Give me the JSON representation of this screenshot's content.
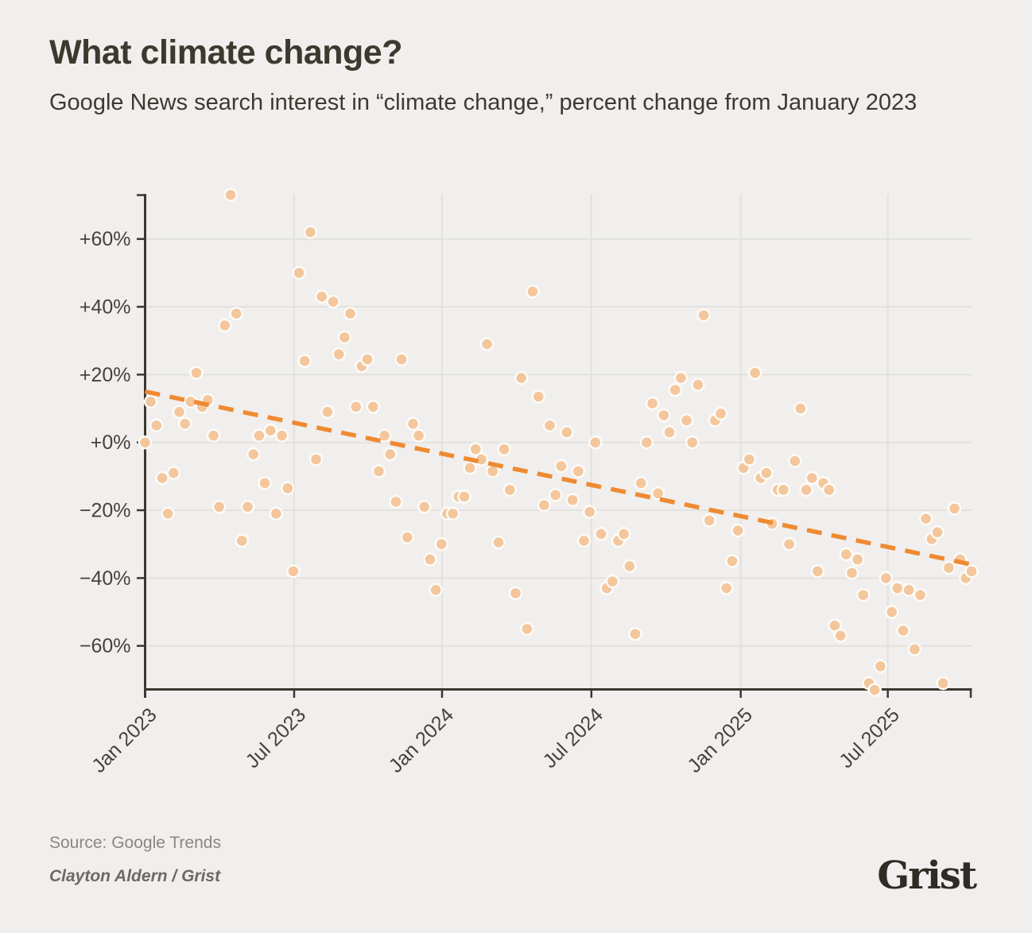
{
  "header": {
    "title": "What climate change?",
    "subtitle": "Google News search interest in “climate change,” percent change from January 2023"
  },
  "footer": {
    "source": "Source: Google Trends",
    "credit": "Clayton Aldern / Grist",
    "logo": "Grist"
  },
  "colors": {
    "background": "#f0efed",
    "point_fill": "#f4c69c",
    "point_halo": "#fcfbf8",
    "trend_orange": "#ef8a32",
    "axis_dark": "#3b382f",
    "gridline": "#e3e1dd",
    "tick_text": "#46423a"
  },
  "chart_data": {
    "type": "scatter",
    "title": "What climate change?",
    "subtitle": "Google News search interest in “climate change,” percent change from January 2023",
    "x_unit": "weeks since January 2023",
    "grid": true,
    "x_axis": {
      "ticks": [
        {
          "label": "Jan 2023",
          "week": 0
        },
        {
          "label": "Jul 2023",
          "week": 26.15
        },
        {
          "label": "Jan 2024",
          "week": 52.1
        },
        {
          "label": "Jul 2024",
          "week": 78.3
        },
        {
          "label": "Jan 2025",
          "week": 104.5
        },
        {
          "label": "Jul 2025",
          "week": 130.3
        }
      ]
    },
    "y_axis": {
      "ticks": [
        {
          "label": "+60%",
          "value": 60
        },
        {
          "label": "+40%",
          "value": 40
        },
        {
          "label": "+20%",
          "value": 20
        },
        {
          "label": "+0%",
          "value": 0
        },
        {
          "label": "−20%",
          "value": -20
        },
        {
          "label": "−40%",
          "value": -40
        },
        {
          "label": "−60%",
          "value": -60
        }
      ],
      "range": [
        -73,
        73.5
      ]
    },
    "points": [
      [
        0,
        0
      ],
      [
        1,
        12
      ],
      [
        2,
        5
      ],
      [
        3,
        -10.5
      ],
      [
        4,
        -21
      ],
      [
        5,
        -9
      ],
      [
        6,
        9
      ],
      [
        7,
        5.5
      ],
      [
        8,
        12
      ],
      [
        9,
        20.5
      ],
      [
        10,
        10.5
      ],
      [
        11,
        12.5
      ],
      [
        12,
        2
      ],
      [
        13,
        -19
      ],
      [
        14,
        34.5
      ],
      [
        15,
        73
      ],
      [
        16,
        38
      ],
      [
        17,
        -29
      ],
      [
        18,
        -19
      ],
      [
        19,
        -3.5
      ],
      [
        20,
        2
      ],
      [
        21,
        -12
      ],
      [
        22,
        3.5
      ],
      [
        23,
        -21
      ],
      [
        24,
        2
      ],
      [
        25,
        -13.5
      ],
      [
        26,
        -38
      ],
      [
        27,
        50
      ],
      [
        28,
        24
      ],
      [
        29,
        62
      ],
      [
        30,
        -5
      ],
      [
        31,
        43
      ],
      [
        32,
        9
      ],
      [
        33,
        41.5
      ],
      [
        34,
        26
      ],
      [
        35,
        31
      ],
      [
        36,
        38
      ],
      [
        37,
        10.5
      ],
      [
        38,
        22.5
      ],
      [
        39,
        24.5
      ],
      [
        40,
        10.5
      ],
      [
        41,
        -8.5
      ],
      [
        42,
        2
      ],
      [
        43,
        -3.5
      ],
      [
        44,
        -17.5
      ],
      [
        45,
        24.5
      ],
      [
        46,
        -28
      ],
      [
        47,
        5.5
      ],
      [
        48,
        2
      ],
      [
        49,
        -19
      ],
      [
        50,
        -34.5
      ],
      [
        51,
        -43.5
      ],
      [
        52,
        -30
      ],
      [
        53,
        -21
      ],
      [
        54,
        -21
      ],
      [
        55,
        -16
      ],
      [
        56,
        -16
      ],
      [
        57,
        -7.5
      ],
      [
        58,
        -2
      ],
      [
        59,
        -5
      ],
      [
        60,
        29
      ],
      [
        61,
        -8.5
      ],
      [
        62,
        -29.5
      ],
      [
        63,
        -2
      ],
      [
        64,
        -14
      ],
      [
        65,
        -44.5
      ],
      [
        66,
        19
      ],
      [
        67,
        -55
      ],
      [
        68,
        44.5
      ],
      [
        69,
        13.5
      ],
      [
        70,
        -18.5
      ],
      [
        71,
        5
      ],
      [
        72,
        -15.5
      ],
      [
        73,
        -7
      ],
      [
        74,
        3
      ],
      [
        75,
        -17
      ],
      [
        76,
        -8.5
      ],
      [
        77,
        -29
      ],
      [
        78,
        -20.5
      ],
      [
        79,
        0
      ],
      [
        80,
        -27
      ],
      [
        81,
        -43
      ],
      [
        82,
        -41
      ],
      [
        83,
        -29
      ],
      [
        84,
        -27
      ],
      [
        85,
        -36.5
      ],
      [
        86,
        -56.5
      ],
      [
        87,
        -12
      ],
      [
        88,
        0
      ],
      [
        89,
        11.5
      ],
      [
        90,
        -15
      ],
      [
        91,
        8
      ],
      [
        92,
        3
      ],
      [
        93,
        15.5
      ],
      [
        94,
        19
      ],
      [
        95,
        6.5
      ],
      [
        96,
        0
      ],
      [
        97,
        17
      ],
      [
        98,
        37.5
      ],
      [
        99,
        -23
      ],
      [
        100,
        6.5
      ],
      [
        101,
        8.5
      ],
      [
        102,
        -43
      ],
      [
        103,
        -35
      ],
      [
        104,
        -26
      ],
      [
        105,
        -7.5
      ],
      [
        106,
        -5
      ],
      [
        107,
        20.5
      ],
      [
        108,
        -10.5
      ],
      [
        109,
        -9
      ],
      [
        110,
        -24
      ],
      [
        111,
        -14
      ],
      [
        112,
        -14
      ],
      [
        113,
        -30
      ],
      [
        114,
        -5.5
      ],
      [
        115,
        10
      ],
      [
        116,
        -14
      ],
      [
        117,
        -10.5
      ],
      [
        118,
        -38
      ],
      [
        119,
        -12
      ],
      [
        120,
        -14
      ],
      [
        121,
        -54
      ],
      [
        122,
        -57
      ],
      [
        123,
        -33
      ],
      [
        124,
        -38.5
      ],
      [
        125,
        -34.5
      ],
      [
        126,
        -45
      ],
      [
        127,
        -71
      ],
      [
        128,
        -73
      ],
      [
        129,
        -66
      ],
      [
        130,
        -40
      ],
      [
        131,
        -50
      ],
      [
        132,
        -43
      ],
      [
        133,
        -55.5
      ],
      [
        134,
        -43.5
      ],
      [
        135,
        -61
      ],
      [
        136,
        -45
      ],
      [
        137,
        -22.5
      ],
      [
        138,
        -28.5
      ],
      [
        139,
        -26.5
      ],
      [
        140,
        -71
      ],
      [
        141,
        -37
      ],
      [
        142,
        -19.5
      ],
      [
        143,
        -34.5
      ],
      [
        144,
        -40
      ],
      [
        145,
        -38
      ]
    ],
    "trend": {
      "style": "dashed",
      "start": {
        "week": 0,
        "pct": 15
      },
      "end": {
        "week": 145,
        "pct": -36
      }
    },
    "legend": null
  }
}
